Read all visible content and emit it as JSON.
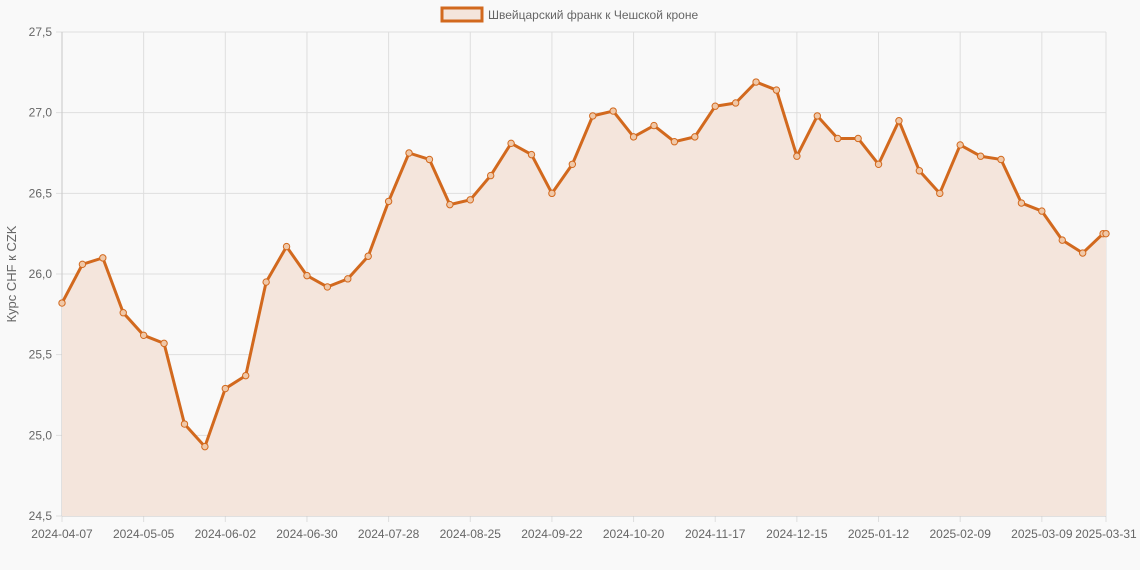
{
  "chart_data": {
    "type": "line",
    "legend": {
      "label": "Швейцарский франк к Чешской кроне",
      "position": "top"
    },
    "ylabel": "Курс CHF к CZK",
    "xlabel": "",
    "ylim": [
      24.5,
      27.5
    ],
    "y_ticks": [
      "24,5",
      "25,0",
      "25,5",
      "26,0",
      "26,5",
      "27,0",
      "27,5"
    ],
    "x_ticks": [
      "2024-04-07",
      "2024-05-05",
      "2024-06-02",
      "2024-06-30",
      "2024-07-28",
      "2024-08-25",
      "2024-09-22",
      "2024-10-20",
      "2024-11-17",
      "2024-12-15",
      "2025-01-12",
      "2025-02-09",
      "2025-03-09",
      "2025-03-31"
    ],
    "grid": true,
    "series": [
      {
        "name": "Швейцарский франк к Чешской кроне",
        "x": [
          "2024-04-07",
          "2024-04-14",
          "2024-04-21",
          "2024-04-28",
          "2024-05-05",
          "2024-05-12",
          "2024-05-19",
          "2024-05-26",
          "2024-06-02",
          "2024-06-09",
          "2024-06-16",
          "2024-06-23",
          "2024-06-30",
          "2024-07-07",
          "2024-07-14",
          "2024-07-21",
          "2024-07-28",
          "2024-08-04",
          "2024-08-11",
          "2024-08-18",
          "2024-08-25",
          "2024-09-01",
          "2024-09-08",
          "2024-09-15",
          "2024-09-22",
          "2024-09-29",
          "2024-10-06",
          "2024-10-13",
          "2024-10-20",
          "2024-10-27",
          "2024-11-03",
          "2024-11-10",
          "2024-11-17",
          "2024-11-24",
          "2024-12-01",
          "2024-12-08",
          "2024-12-15",
          "2024-12-22",
          "2024-12-29",
          "2025-01-05",
          "2025-01-12",
          "2025-01-19",
          "2025-01-26",
          "2025-02-02",
          "2025-02-09",
          "2025-02-16",
          "2025-02-23",
          "2025-03-02",
          "2025-03-09",
          "2025-03-16",
          "2025-03-23",
          "2025-03-30",
          "2025-03-31"
        ],
        "values": [
          25.82,
          26.06,
          26.1,
          25.76,
          25.62,
          25.57,
          25.07,
          24.93,
          25.29,
          25.37,
          25.95,
          26.17,
          25.99,
          25.92,
          25.97,
          26.11,
          26.45,
          26.75,
          26.71,
          26.43,
          26.46,
          26.61,
          26.81,
          26.74,
          26.5,
          26.68,
          26.98,
          27.01,
          26.85,
          26.92,
          26.82,
          26.85,
          27.04,
          27.06,
          27.19,
          27.14,
          26.73,
          26.98,
          26.84,
          26.84,
          26.68,
          26.95,
          26.64,
          26.5,
          26.8,
          26.73,
          26.71,
          26.44,
          26.39,
          26.21,
          26.13,
          26.25,
          26.25
        ],
        "color": "#d2691e",
        "fill_color": "#f4e5dc"
      }
    ]
  }
}
